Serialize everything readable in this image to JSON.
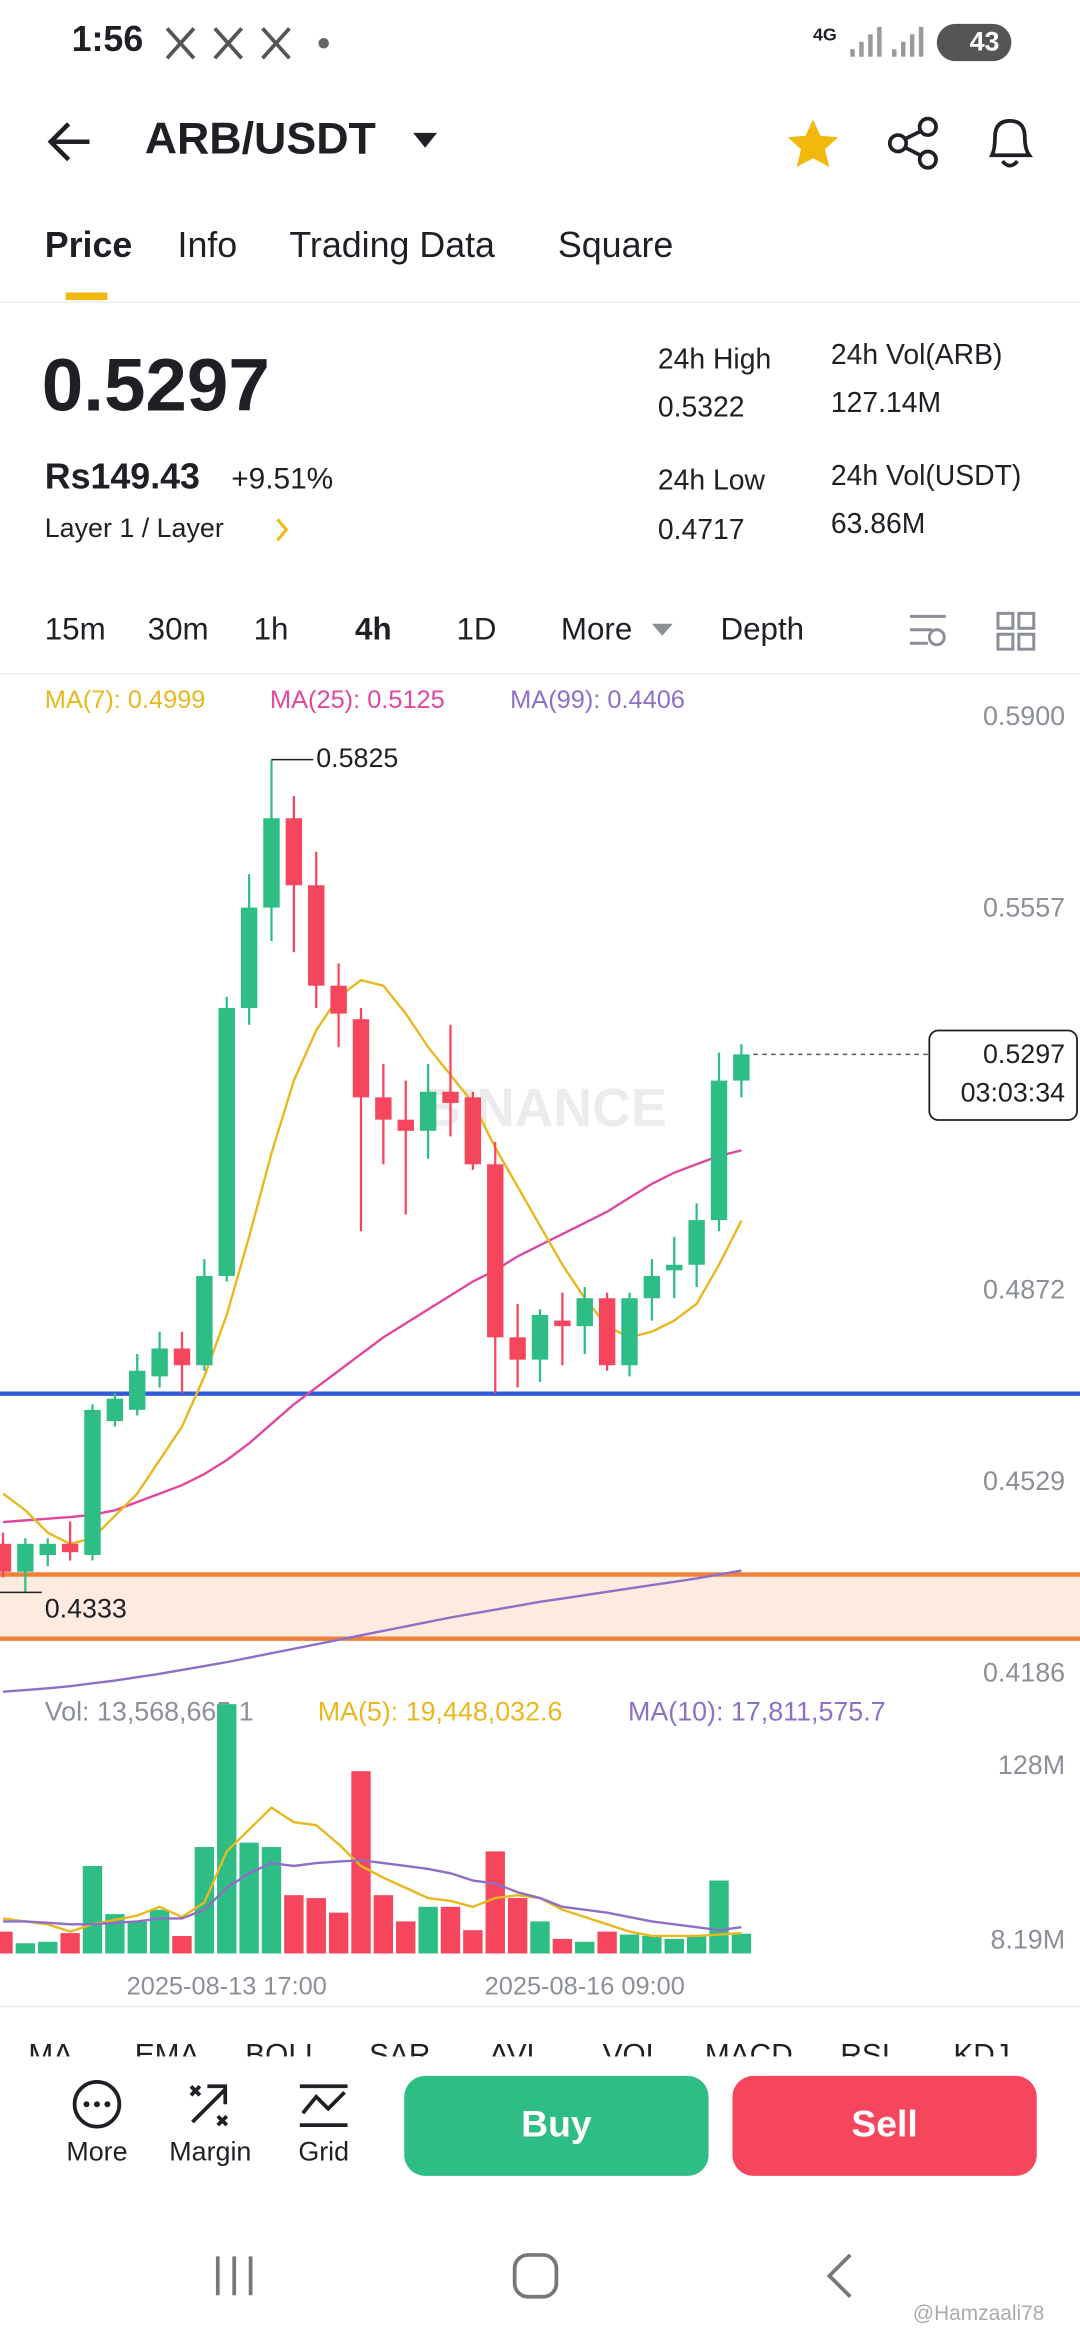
{
  "status": {
    "time": "1:56",
    "network": "4G",
    "battery": "43"
  },
  "header": {
    "pair": "ARB/USDT"
  },
  "tabs": [
    "Price",
    "Info",
    "Trading Data",
    "Square"
  ],
  "price": {
    "last": "0.5297",
    "local": "Rs149.43",
    "change": "+9.51%",
    "sector": "Layer 1 / Layer"
  },
  "stats": [
    {
      "label": "24h High",
      "value": "0.5322"
    },
    {
      "label": "24h Vol(ARB)",
      "value": "127.14M"
    },
    {
      "label": "24h Low",
      "value": "0.4717"
    },
    {
      "label": "24h Vol(USDT)",
      "value": "63.86M"
    }
  ],
  "intervals": [
    "15m",
    "30m",
    "1h",
    "4h",
    "1D",
    "More",
    "Depth"
  ],
  "chart": {
    "type": "candlestick",
    "ma_labels": [
      "MA(7): 0.4999",
      "MA(25): 0.5125",
      "MA(99): 0.4406"
    ],
    "colors": {
      "up": "#2ebd85",
      "down": "#f6465d",
      "ma7": "#e8b820",
      "ma25": "#e0479e",
      "ma99": "#8e6fc6"
    },
    "watermark": "BINANCE",
    "ylim": [
      0.4186,
      0.59
    ],
    "yticks": [
      {
        "value": 0.59,
        "label": "0.5900"
      },
      0.5557,
      0.4872,
      0.4529,
      0.4186
    ],
    "candles": [
      {
        "o": 0.442,
        "h": 0.444,
        "l": 0.436,
        "c": 0.437
      },
      {
        "o": 0.437,
        "h": 0.443,
        "l": 0.4333,
        "c": 0.442
      },
      {
        "o": 0.44,
        "h": 0.443,
        "l": 0.438,
        "c": 0.442
      },
      {
        "o": 0.442,
        "h": 0.446,
        "l": 0.439,
        "c": 0.4405
      },
      {
        "o": 0.44,
        "h": 0.467,
        "l": 0.439,
        "c": 0.466
      },
      {
        "o": 0.464,
        "h": 0.469,
        "l": 0.463,
        "c": 0.468
      },
      {
        "o": 0.466,
        "h": 0.476,
        "l": 0.465,
        "c": 0.473
      },
      {
        "o": 0.472,
        "h": 0.48,
        "l": 0.47,
        "c": 0.477
      },
      {
        "o": 0.477,
        "h": 0.48,
        "l": 0.469,
        "c": 0.474
      },
      {
        "o": 0.474,
        "h": 0.493,
        "l": 0.473,
        "c": 0.49
      },
      {
        "o": 0.49,
        "h": 0.54,
        "l": 0.489,
        "c": 0.538
      },
      {
        "o": 0.538,
        "h": 0.562,
        "l": 0.535,
        "c": 0.556
      },
      {
        "o": 0.556,
        "h": 0.5825,
        "l": 0.55,
        "c": 0.572
      },
      {
        "o": 0.572,
        "h": 0.576,
        "l": 0.548,
        "c": 0.56
      },
      {
        "o": 0.56,
        "h": 0.566,
        "l": 0.538,
        "c": 0.542
      },
      {
        "o": 0.542,
        "h": 0.546,
        "l": 0.531,
        "c": 0.537
      },
      {
        "o": 0.536,
        "h": 0.538,
        "l": 0.498,
        "c": 0.522
      },
      {
        "o": 0.522,
        "h": 0.528,
        "l": 0.51,
        "c": 0.518
      },
      {
        "o": 0.518,
        "h": 0.525,
        "l": 0.501,
        "c": 0.516
      },
      {
        "o": 0.516,
        "h": 0.528,
        "l": 0.511,
        "c": 0.523
      },
      {
        "o": 0.523,
        "h": 0.535,
        "l": 0.515,
        "c": 0.521
      },
      {
        "o": 0.522,
        "h": 0.523,
        "l": 0.509,
        "c": 0.51
      },
      {
        "o": 0.51,
        "h": 0.514,
        "l": 0.469,
        "c": 0.479
      },
      {
        "o": 0.479,
        "h": 0.485,
        "l": 0.47,
        "c": 0.475
      },
      {
        "o": 0.475,
        "h": 0.484,
        "l": 0.471,
        "c": 0.483
      },
      {
        "o": 0.482,
        "h": 0.487,
        "l": 0.474,
        "c": 0.481
      },
      {
        "o": 0.481,
        "h": 0.488,
        "l": 0.476,
        "c": 0.486
      },
      {
        "o": 0.486,
        "h": 0.487,
        "l": 0.473,
        "c": 0.474
      },
      {
        "o": 0.474,
        "h": 0.487,
        "l": 0.472,
        "c": 0.486
      },
      {
        "o": 0.486,
        "h": 0.493,
        "l": 0.482,
        "c": 0.49
      },
      {
        "o": 0.491,
        "h": 0.497,
        "l": 0.486,
        "c": 0.492
      },
      {
        "o": 0.492,
        "h": 0.503,
        "l": 0.488,
        "c": 0.5
      },
      {
        "o": 0.5,
        "h": 0.53,
        "l": 0.498,
        "c": 0.525
      },
      {
        "o": 0.525,
        "h": 0.5315,
        "l": 0.522,
        "c": 0.5297
      }
    ],
    "ma7": [
      0.451,
      0.448,
      0.444,
      0.442,
      0.443,
      0.447,
      0.451,
      0.457,
      0.463,
      0.472,
      0.483,
      0.497,
      0.512,
      0.525,
      0.534,
      0.54,
      0.543,
      0.542,
      0.537,
      0.531,
      0.526,
      0.521,
      0.513,
      0.506,
      0.499,
      0.492,
      0.486,
      0.481,
      0.479,
      0.48,
      0.482,
      0.485,
      0.492,
      0.4999
    ],
    "ma25": [
      0.4459,
      0.4462,
      0.4465,
      0.4468,
      0.4472,
      0.448,
      0.4495,
      0.451,
      0.4525,
      0.4545,
      0.457,
      0.46,
      0.4635,
      0.467,
      0.47,
      0.473,
      0.476,
      0.479,
      0.4815,
      0.484,
      0.4865,
      0.489,
      0.491,
      0.4935,
      0.4955,
      0.4975,
      0.4995,
      0.5015,
      0.504,
      0.5065,
      0.5085,
      0.51,
      0.5115,
      0.5125
    ],
    "ma99": [
      0.4155,
      0.4158,
      0.4161,
      0.4165,
      0.417,
      0.4175,
      0.4181,
      0.4187,
      0.4194,
      0.4201,
      0.4208,
      0.4216,
      0.4224,
      0.4232,
      0.424,
      0.4248,
      0.4256,
      0.4264,
      0.4272,
      0.428,
      0.4288,
      0.4295,
      0.4302,
      0.4309,
      0.4316,
      0.4322,
      0.4328,
      0.4334,
      0.434,
      0.4346,
      0.4352,
      0.4358,
      0.4365,
      0.4372
    ],
    "high_marker": 0.5825,
    "low_marker": 0.4333,
    "last_price": 0.5297,
    "countdown": "03:03:34",
    "drawings": [
      {
        "value": 0.4689,
        "color": "#2e5bd9"
      },
      {
        "value": 0.4365,
        "color": "#f0813a"
      },
      {
        "value": 0.425,
        "color": "#f0813a"
      }
    ]
  },
  "volume": {
    "labels": [
      "Vol: 13,568,665.1",
      "MA(5): 19,448,032.6",
      "MA(10): 17,811,575.7"
    ],
    "ylim": [
      0,
      175
    ],
    "yticks": [
      {
        "value": 128,
        "label": "128M"
      },
      {
        "value": 8.19,
        "label": "8.19M"
      }
    ],
    "values": [
      15,
      7,
      8,
      14,
      60,
      27,
      22,
      30,
      12,
      73,
      171,
      76,
      73,
      40,
      38,
      28,
      125,
      40,
      22,
      32,
      32,
      16,
      70,
      38,
      22,
      10,
      8,
      15,
      13,
      12,
      10,
      12,
      50,
      13.57
    ],
    "ma5": [
      24,
      22,
      20,
      15,
      20,
      23,
      26,
      32,
      25,
      35,
      70,
      85,
      100,
      90,
      88,
      75,
      60,
      52,
      45,
      38,
      36,
      32,
      38,
      40,
      38,
      30,
      25,
      20,
      15,
      12,
      12,
      12,
      13,
      14
    ],
    "ma10": [
      22,
      22,
      21,
      20,
      20,
      21,
      22,
      24,
      24,
      30,
      45,
      55,
      62,
      60,
      62,
      63,
      64,
      62,
      60,
      58,
      55,
      50,
      48,
      42,
      38,
      32,
      30,
      28,
      25,
      22,
      20,
      18,
      16,
      18
    ],
    "dates": [
      {
        "index": 10,
        "label": "2025-08-13 17:00"
      },
      {
        "index": 26,
        "label": "2025-08-16 09:00"
      }
    ]
  },
  "indicators": [
    "MA",
    "EMA",
    "BOLL",
    "SAR",
    "AVL",
    "VOL",
    "MACD",
    "RSI",
    "KDJ"
  ],
  "actions": [
    "More",
    "Margin",
    "Grid"
  ],
  "buttons": [
    "Buy",
    "Sell"
  ],
  "credit": "@Hamzaali78"
}
